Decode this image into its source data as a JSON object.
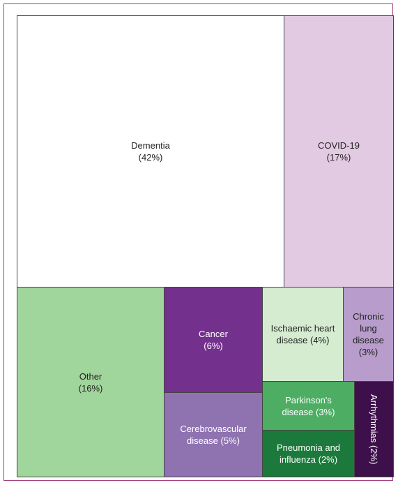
{
  "chart_data": {
    "type": "treemap",
    "categories": [
      "Dementia",
      "COVID-19",
      "Other",
      "Cancer",
      "Cerebrovascular disease",
      "Ischaemic heart disease",
      "Chronic lung disease",
      "Parkinson's disease",
      "Pneumonia and influenza",
      "Arrhythmias"
    ],
    "values": [
      42,
      17,
      16,
      6,
      5,
      4,
      3,
      3,
      2,
      2
    ],
    "value_labels": [
      "(42%)",
      "(17%)",
      "(16%)",
      "(6%)",
      "(5%)",
      "(4%)",
      "(3%)",
      "(3%)",
      "(2%)",
      "(2%)"
    ],
    "colors": [
      "#ffffff",
      "#e2cae2",
      "#a0d59b",
      "#73318d",
      "#8f73b1",
      "#d5ecd1",
      "#b89dcc",
      "#4dae63",
      "#1b7a3b",
      "#3e104b"
    ]
  }
}
